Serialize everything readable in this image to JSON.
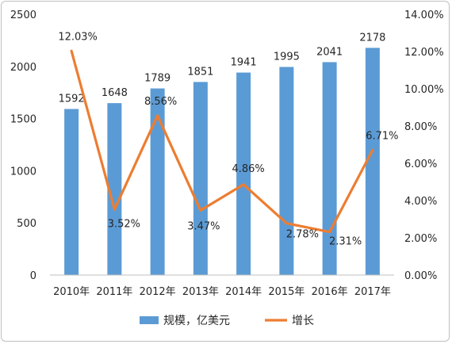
{
  "chart_data": {
    "type": "bar+line",
    "categories": [
      "2010年",
      "2011年",
      "2012年",
      "2013年",
      "2014年",
      "2015年",
      "2016年",
      "2017年"
    ],
    "series": [
      {
        "name": "规模，亿美元",
        "type": "bar",
        "axis": "left",
        "color": "#5B9BD5",
        "values": [
          1592,
          1648,
          1789,
          1851,
          1941,
          1995,
          2041,
          2178
        ],
        "labels": [
          "1592",
          "1648",
          "1789",
          "1851",
          "1941",
          "1995",
          "2041",
          "2178"
        ]
      },
      {
        "name": "增长",
        "type": "line",
        "axis": "right",
        "color": "#ED7D31",
        "values": [
          12.03,
          3.52,
          8.56,
          3.47,
          4.86,
          2.78,
          2.31,
          6.71
        ],
        "labels": [
          "12.03%",
          "3.52%",
          "8.56%",
          "3.47%",
          "4.86%",
          "2.78%",
          "2.31%",
          "6.71%"
        ]
      }
    ],
    "y_left": {
      "lim": [
        0,
        2500
      ],
      "ticks": [
        0,
        500,
        1000,
        1500,
        2000,
        2500
      ],
      "tick_labels": [
        "0",
        "500",
        "1000",
        "1500",
        "2000",
        "2500"
      ]
    },
    "y_right": {
      "lim": [
        0,
        14
      ],
      "ticks": [
        0,
        2,
        4,
        6,
        8,
        10,
        12,
        14
      ],
      "tick_labels": [
        "0.00%",
        "2.00%",
        "4.00%",
        "6.00%",
        "8.00%",
        "10.00%",
        "12.00%",
        "14.00%"
      ]
    },
    "grid": false,
    "legend_position": "bottom"
  }
}
